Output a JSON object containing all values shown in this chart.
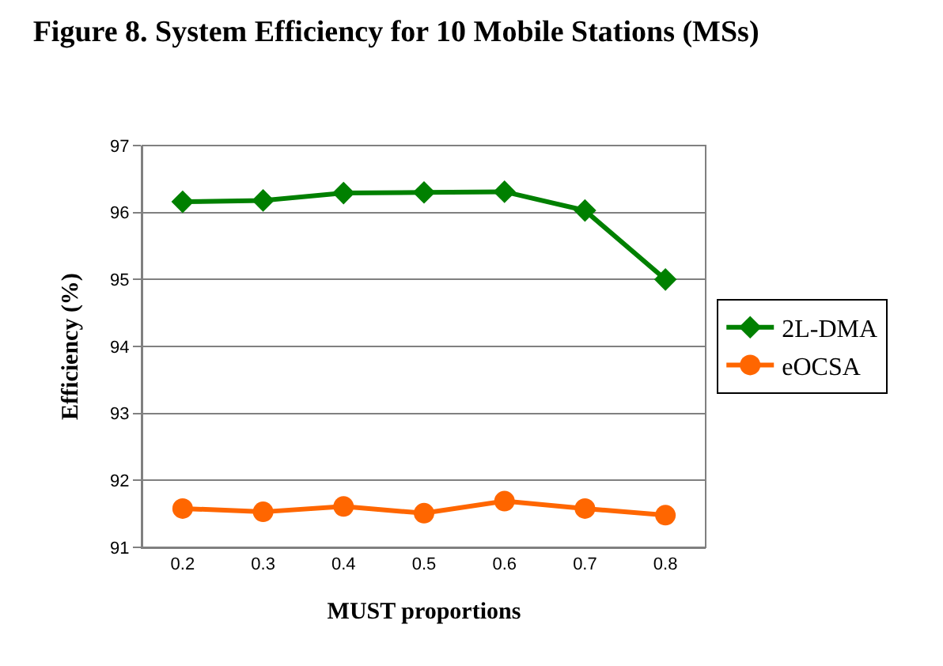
{
  "chart_data": {
    "type": "line",
    "title": "Figure 8. System Efficiency for 10 Mobile Stations (MSs)",
    "xlabel": "MUST proportions",
    "ylabel": "Efficiency (%)",
    "categories": [
      "0.2",
      "0.3",
      "0.4",
      "0.5",
      "0.6",
      "0.7",
      "0.8"
    ],
    "series": [
      {
        "name": "2L-DMA",
        "color": "#008000",
        "marker": "diamond",
        "values": [
          96.16,
          96.18,
          96.29,
          96.3,
          96.31,
          96.03,
          95.0
        ]
      },
      {
        "name": "eOCSA",
        "color": "#ff6600",
        "marker": "circle",
        "values": [
          91.58,
          91.53,
          91.61,
          91.51,
          91.69,
          91.58,
          91.48
        ]
      }
    ],
    "ylim": [
      91,
      97
    ],
    "yticks": [
      91,
      92,
      93,
      94,
      95,
      96,
      97
    ],
    "grid": "y",
    "legend": "right",
    "line_style": "solid"
  }
}
